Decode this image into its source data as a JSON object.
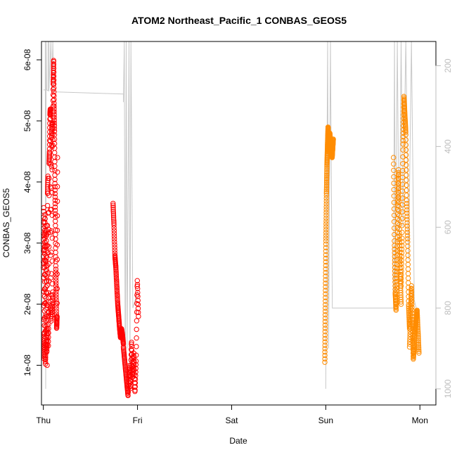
{
  "chart_data": {
    "type": "scatter",
    "title": "ATOM2 Northeast_Pacific_1 CONBAS_GEOS5",
    "xlabel": "Date",
    "ylabel": "CONBAS_GEOS5",
    "x_ticks": [
      "Thu",
      "Fri",
      "Sat",
      "Sun",
      "Mon"
    ],
    "y_ticks": [
      "1e-08",
      "2e-08",
      "3e-08",
      "4e-08",
      "5e-08",
      "6e-08"
    ],
    "y_tick_values": [
      1e-08,
      2e-08,
      3e-08,
      4e-08,
      5e-08,
      6e-08
    ],
    "ylim": [
      3.5e-09,
      6.3e-08
    ],
    "xlim": [
      -0.02,
      4.17
    ],
    "y2_ticks": [
      "200",
      "400",
      "600",
      "800",
      "1000"
    ],
    "y2_tick_values": [
      200,
      400,
      600,
      800,
      1000
    ],
    "y2lim": [
      1040,
      140
    ],
    "y2_reversed": true,
    "colors": {
      "series_1": "#ff0000",
      "series_2": "#ff8c00",
      "pressure_line": "#c8c8c8",
      "axis": "#000000",
      "right_axis": "#bdbdbd"
    },
    "series": [
      {
        "color": "#ff0000",
        "marker": "open-circle",
        "segments": [
          {
            "x0": 0.0,
            "x1": 0.04,
            "y": [
              2.6e-08,
              3.6e-08,
              1.1e-08,
              1.5e-08,
              2.8e-08,
              3.5e-08,
              1e-08,
              1.4e-08,
              2.4e-08,
              3.3e-08,
              1.2e-08,
              1.6e-08
            ]
          },
          {
            "x0": 0.04,
            "x1": 0.1,
            "y": [
              1e-08,
              3.8e-08,
              4.1e-08,
              1.3e-08,
              1.9e-08,
              4.3e-08,
              4.5e-08,
              5.1e-08,
              5.2e-08,
              2e-08,
              1.7e-08,
              4.7e-08,
              5e-08,
              1.8e-08,
              2.2e-08
            ]
          },
          {
            "x0": 0.1,
            "x1": 0.15,
            "y": [
              4.6e-08,
              5.6e-08,
              6e-08,
              5.3e-08,
              4.8e-08,
              4e-08,
              3.4e-08,
              2.6e-08,
              2.1e-08,
              1.6e-08,
              1.8e-08,
              4.4e-08
            ]
          },
          {
            "x0": 0.74,
            "x1": 0.85,
            "y": [
              3.65e-08,
              3.3e-08,
              2.8e-08,
              2.6e-08,
              2.3e-08,
              2e-08,
              1.8e-08,
              1.6e-08,
              1.45e-08,
              1.6e-08,
              1.5e-08,
              1.35e-08
            ]
          },
          {
            "x0": 0.85,
            "x1": 1.01,
            "y": [
              1.3e-08,
              1.1e-08,
              9e-09,
              7e-09,
              5e-09,
              1e-08,
              6e-09,
              1.4e-08,
              8e-09,
              1.2e-08,
              5.5e-09,
              1.1e-08,
              2.4e-08,
              1.8e-08
            ]
          }
        ]
      },
      {
        "color": "#ff8c00",
        "marker": "open-circle",
        "segments": [
          {
            "x0": 2.99,
            "x1": 3.03,
            "y": [
              1.05e-08,
              2e-08,
              3e-08,
              3.8e-08,
              4.3e-08,
              4.6e-08,
              4.9e-08,
              4.7e-08
            ]
          },
          {
            "x0": 3.03,
            "x1": 3.08,
            "y": [
              4.5e-08,
              4.8e-08,
              4.6e-08,
              4.4e-08,
              4.7e-08
            ]
          },
          {
            "x0": 3.72,
            "x1": 3.8,
            "y": [
              4.4e-08,
              3e-08,
              2.2e-08,
              1.9e-08,
              2.6e-08,
              3.6e-08,
              4.2e-08,
              3.2e-08,
              2.5e-08,
              2e-08
            ]
          },
          {
            "x0": 3.8,
            "x1": 3.89,
            "y": [
              2.3e-08,
              3.1e-08,
              4.6e-08,
              5.4e-08,
              5.1e-08,
              4.8e-08,
              3.7e-08,
              3e-08,
              2e-08,
              1.6e-08
            ]
          },
          {
            "x0": 3.89,
            "x1": 3.99,
            "y": [
              1.3e-08,
              2.3e-08,
              1.1e-08,
              1.6e-08,
              1.9e-08,
              1.2e-08
            ]
          }
        ]
      }
    ]
  }
}
